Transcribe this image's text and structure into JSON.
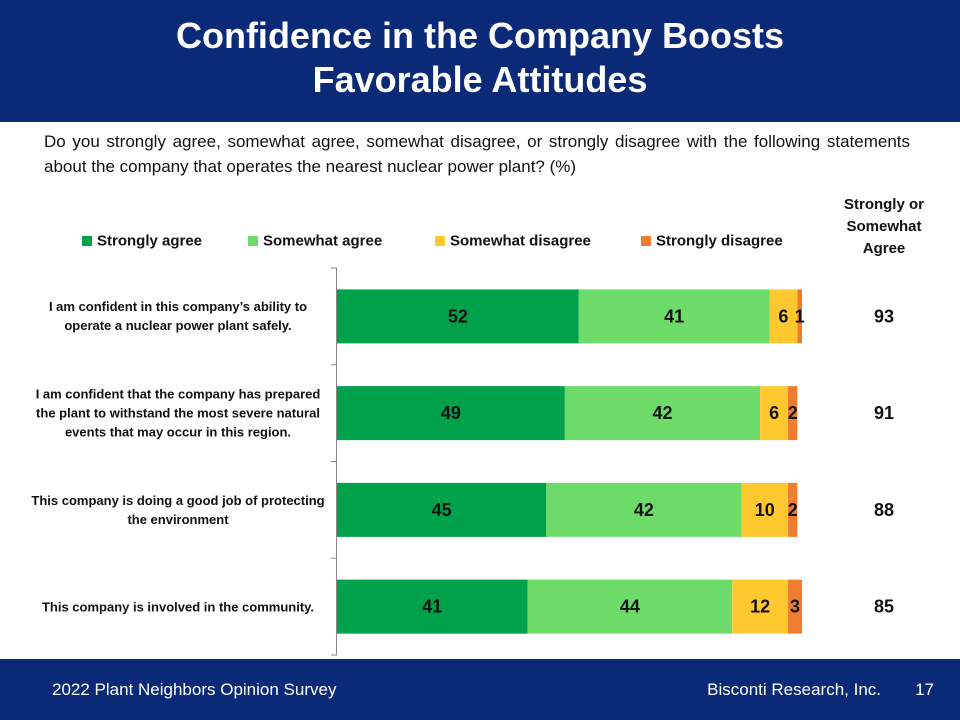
{
  "chart_data": {
    "type": "bar",
    "orientation": "horizontal",
    "stacked": true,
    "title": "Confidence in the Company Boosts Favorable Attitudes",
    "subtitle": "Do you strongly agree, somewhat agree, somewhat disagree, or strongly disagree with the following statements about the company that operates the nearest nuclear power plant? (%)",
    "categories": [
      "I am confident in this company’s ability to operate a nuclear power plant safely.",
      "I am confident that the company has prepared the plant to withstand the most severe natural events that may occur in this region.",
      "This company is doing a good job of protecting the environment",
      "This company is involved in the community."
    ],
    "series": [
      {
        "name": "Strongly agree",
        "color": "#00a14b",
        "values": [
          52,
          49,
          45,
          41
        ]
      },
      {
        "name": "Somewhat agree",
        "color": "#6ddb6a",
        "values": [
          41,
          42,
          42,
          44
        ]
      },
      {
        "name": "Somewhat disagree",
        "color": "#ffc82e",
        "values": [
          6,
          6,
          10,
          12
        ]
      },
      {
        "name": "Strongly disagree",
        "color": "#ef7d31",
        "values": [
          1,
          2,
          2,
          3
        ]
      }
    ],
    "xlim": [
      0,
      100
    ],
    "legend": "top",
    "side_header": "Strongly or Somewhat Agree",
    "side_values": [
      93,
      91,
      88,
      85
    ]
  },
  "footer": {
    "left": "2022 Plant Neighbors Opinion Survey",
    "right": "Bisconti Research, Inc.",
    "page": "17"
  }
}
